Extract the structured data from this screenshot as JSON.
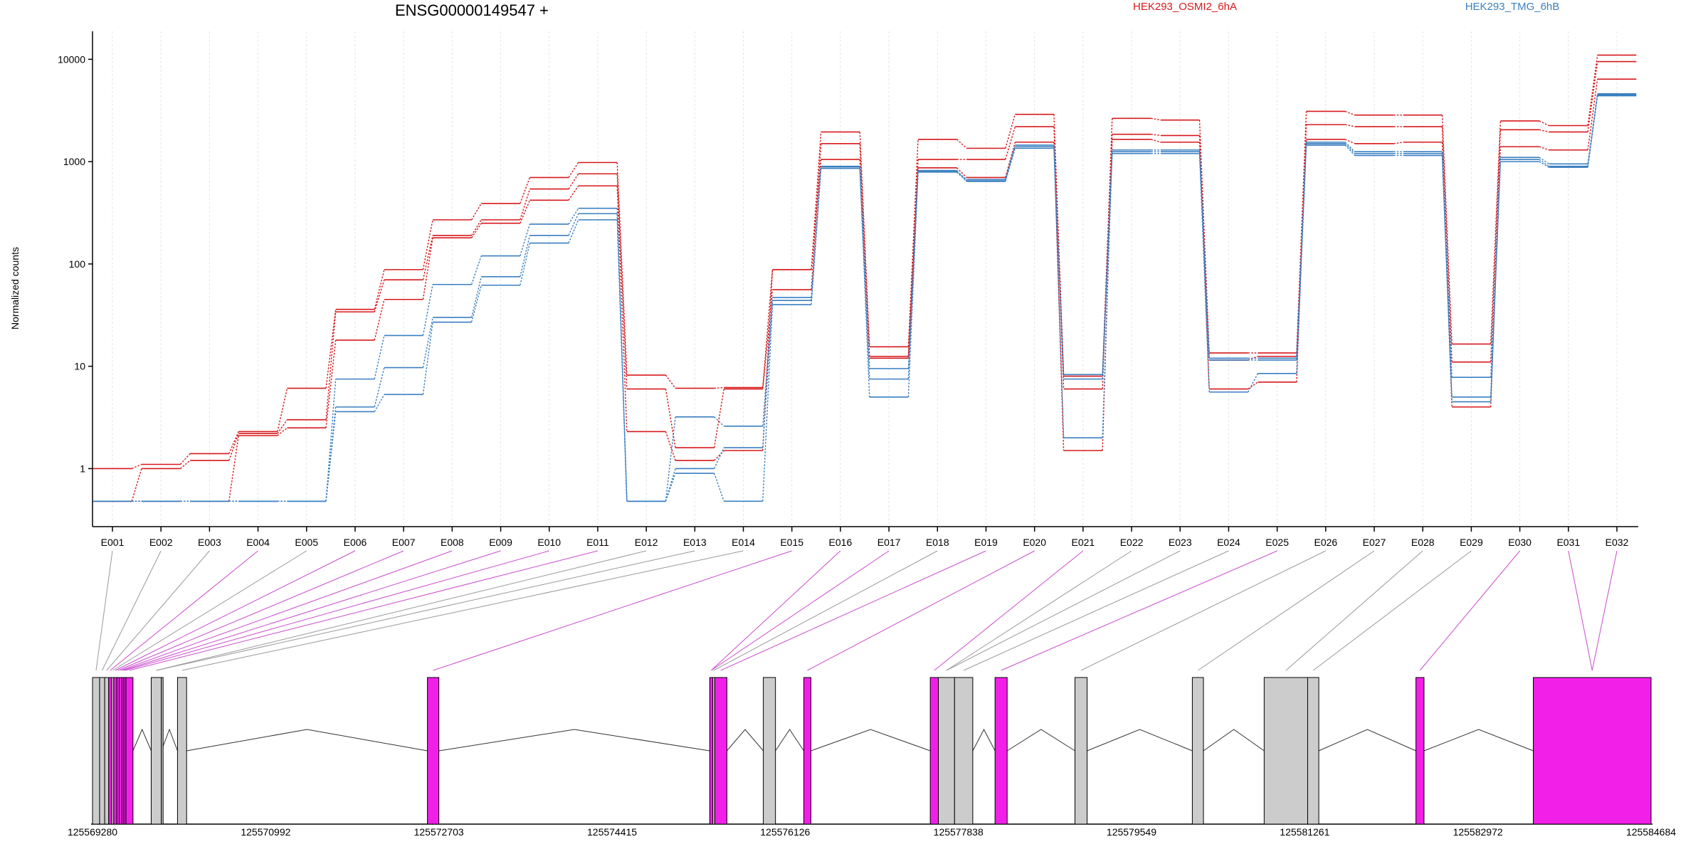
{
  "chart_data": {
    "type": "line",
    "title": "ENSG00000149547 +",
    "ylabel": "Normalized counts",
    "xlabel": "",
    "y_scale": "log",
    "ylim": [
      0.35,
      16000
    ],
    "y_ticks": [
      1,
      10,
      100,
      1000,
      10000
    ],
    "y_tick_labels": [
      "1",
      "10",
      "100",
      "1000",
      "10000"
    ],
    "grid": "vertical dotted at each exon",
    "legend_placement": "top",
    "categories": [
      "E001",
      "E002",
      "E003",
      "E004",
      "E005",
      "E006",
      "E007",
      "E008",
      "E009",
      "E010",
      "E011",
      "E012",
      "E013",
      "E014",
      "E015",
      "E016",
      "E017",
      "E018",
      "E019",
      "E020",
      "E021",
      "E022",
      "E023",
      "E024",
      "E025",
      "E026",
      "E027",
      "E028",
      "E029",
      "E030",
      "E031",
      "E032"
    ],
    "series": [
      {
        "name": "HEK293_OSMI2_6hA",
        "group": "HEK293_OSMI2_6hA",
        "color": "#d7191c",
        "values": [
          1.0,
          1.1,
          1.4,
          2.3,
          6.1,
          36,
          88,
          270,
          390,
          700,
          980,
          8.2,
          6.1,
          6.2,
          88,
          1950,
          15.5,
          1650,
          1350,
          2900,
          8.0,
          2650,
          2550,
          13.5,
          13.5,
          3100,
          2850,
          2850,
          16.5,
          2500,
          2250,
          11000
        ]
      },
      {
        "name": "HEK293_OSMI2_6hA",
        "group": "HEK293_OSMI2_6hA",
        "color": "#d7191c",
        "values": [
          0.48,
          1.0,
          1.2,
          2.2,
          3.0,
          34,
          70,
          190,
          270,
          540,
          760,
          6.0,
          1.6,
          6.0,
          56,
          1500,
          12.5,
          1050,
          1050,
          2200,
          6.0,
          1850,
          1800,
          6.0,
          7.0,
          2300,
          2200,
          2200,
          11.0,
          2050,
          1950,
          9500
        ]
      },
      {
        "name": "HEK293_OSMI2_6hA",
        "group": "HEK293_OSMI2_6hA",
        "color": "#d7191c",
        "values": [
          0.48,
          0.48,
          0.48,
          2.1,
          2.5,
          18,
          45,
          180,
          250,
          420,
          580,
          2.3,
          1.2,
          1.5,
          88,
          1050,
          12.0,
          870,
          700,
          1550,
          1.5,
          1650,
          1550,
          11.5,
          12.5,
          1650,
          1500,
          1550,
          4.0,
          1400,
          1300,
          6400
        ]
      },
      {
        "name": "HEK293_TMG_6hB",
        "group": "HEK293_TMG_6hB",
        "color": "#3a7fc1",
        "values": [
          0.48,
          0.48,
          0.48,
          0.48,
          0.48,
          7.5,
          20,
          63,
          120,
          245,
          350,
          0.48,
          3.2,
          2.6,
          47,
          900,
          9.5,
          800,
          670,
          1450,
          8.3,
          1300,
          1300,
          12.0,
          12.0,
          1550,
          1250,
          1250,
          7.8,
          1100,
          950,
          4600
        ]
      },
      {
        "name": "HEK293_TMG_6hB",
        "group": "HEK293_TMG_6hB",
        "color": "#3a7fc1",
        "values": [
          0.48,
          0.48,
          0.48,
          0.48,
          0.48,
          4.0,
          9.7,
          30,
          75,
          190,
          310,
          0.48,
          1.0,
          1.6,
          44,
          890,
          7.5,
          820,
          650,
          1400,
          2.0,
          1250,
          1250,
          11.5,
          11.5,
          1500,
          1200,
          1200,
          5.0,
          1050,
          900,
          4500
        ]
      },
      {
        "name": "HEK293_TMG_6hB",
        "group": "HEK293_TMG_6hB",
        "color": "#3a7fc1",
        "values": [
          0.48,
          0.48,
          0.48,
          0.48,
          0.48,
          3.6,
          5.3,
          27,
          62,
          160,
          270,
          0.48,
          0.9,
          0.48,
          40,
          860,
          5.0,
          790,
          640,
          1350,
          7.5,
          1200,
          1200,
          5.6,
          8.5,
          1450,
          1150,
          1150,
          4.5,
          1000,
          880,
          4400
        ]
      }
    ],
    "gene_model": {
      "coordinate_ticks": [
        "125569280",
        "125570992",
        "125572703",
        "125574415",
        "125576126",
        "125577838",
        "125579549",
        "125581261",
        "125582972",
        "125584684"
      ],
      "xlim": [
        125569280,
        125584684
      ],
      "exons": [
        {
          "id": "E001",
          "start": 125569280,
          "end": 125569350,
          "highlight": false
        },
        {
          "id": "E002",
          "start": 125569350,
          "end": 125569400,
          "highlight": false
        },
        {
          "id": "E003",
          "start": 125569400,
          "end": 125569440,
          "highlight": false
        },
        {
          "id": "E004",
          "start": 125569440,
          "end": 125569470,
          "highlight": true
        },
        {
          "id": "E005",
          "start": 125569470,
          "end": 125569490,
          "highlight": false
        },
        {
          "id": "E006",
          "start": 125569490,
          "end": 125569520,
          "highlight": true
        },
        {
          "id": "E007",
          "start": 125569520,
          "end": 125569545,
          "highlight": true
        },
        {
          "id": "E008",
          "start": 125569545,
          "end": 125569570,
          "highlight": true
        },
        {
          "id": "E009",
          "start": 125569570,
          "end": 125569590,
          "highlight": true
        },
        {
          "id": "E010",
          "start": 125569590,
          "end": 125569610,
          "highlight": true
        },
        {
          "id": "E011",
          "start": 125569610,
          "end": 125569680,
          "highlight": true
        },
        {
          "id": "E012",
          "start": 125569860,
          "end": 125569960,
          "highlight": false
        },
        {
          "id": "E013",
          "start": 125569960,
          "end": 125569960,
          "highlight": false
        },
        {
          "id": "E014",
          "start": 125570120,
          "end": 125570210,
          "highlight": false
        },
        {
          "id": "E015",
          "start": 125572590,
          "end": 125572703,
          "highlight": true
        },
        {
          "id": "E016",
          "start": 125575380,
          "end": 125575410,
          "highlight": true
        },
        {
          "id": "E017",
          "start": 125575410,
          "end": 125575430,
          "highlight": false
        },
        {
          "id": "E018",
          "start": 125575430,
          "end": 125575550,
          "highlight": true
        },
        {
          "id": "E019",
          "start": 125575910,
          "end": 125576030,
          "highlight": false
        },
        {
          "id": "E020",
          "start": 125576310,
          "end": 125576380,
          "highlight": true
        },
        {
          "id": "E021",
          "start": 125577560,
          "end": 125577640,
          "highlight": true
        },
        {
          "id": "E022",
          "start": 125577640,
          "end": 125577800,
          "highlight": false
        },
        {
          "id": "E023",
          "start": 125577800,
          "end": 125577980,
          "highlight": false
        },
        {
          "id": "E024",
          "start": 125578200,
          "end": 125578320,
          "highlight": true
        },
        {
          "id": "E025",
          "start": 125578990,
          "end": 125579110,
          "highlight": false
        },
        {
          "id": "E026",
          "start": 125580150,
          "end": 125580260,
          "highlight": false
        },
        {
          "id": "E027",
          "start": 125580860,
          "end": 125581290,
          "highlight": false
        },
        {
          "id": "E028",
          "start": 125581290,
          "end": 125581400,
          "highlight": false
        },
        {
          "id": "E029",
          "start": 125582360,
          "end": 125582440,
          "highlight": true
        },
        {
          "id": "E030",
          "start": 125583520,
          "end": 125584684,
          "highlight": true
        }
      ],
      "connector_exon_ids": [
        "E001",
        "E002",
        "E003",
        "E004",
        "E005",
        "E006",
        "E007",
        "E008",
        "E009",
        "E010",
        "E011",
        "E012",
        "E012",
        "E014",
        "E015",
        "E016",
        "E016",
        "E017",
        "E018",
        "E020",
        "E021",
        "E022",
        "E022",
        "E023",
        "E024",
        "E025",
        "E026",
        "E027",
        "E028",
        "E029",
        "E030",
        "E030"
      ],
      "introns": [
        [
          125569680,
          125569860
        ],
        [
          125569960,
          125570120
        ],
        [
          125570210,
          125572590
        ],
        [
          125572703,
          125575380
        ],
        [
          125575550,
          125575910
        ],
        [
          125576030,
          125576310
        ],
        [
          125576380,
          125577560
        ],
        [
          125577980,
          125578200
        ],
        [
          125578320,
          125578990
        ],
        [
          125579110,
          125580150
        ],
        [
          125580260,
          125580860
        ],
        [
          125581400,
          125582360
        ],
        [
          125582440,
          125583520
        ]
      ]
    }
  },
  "colors": {
    "group_a": "#d7191c",
    "group_b": "#3a7fc1",
    "highlight_exon": "#f21fe8",
    "plain_exon": "#cccccc",
    "highlight_connector": "#c94ccc",
    "plain_connector": "#999999"
  }
}
